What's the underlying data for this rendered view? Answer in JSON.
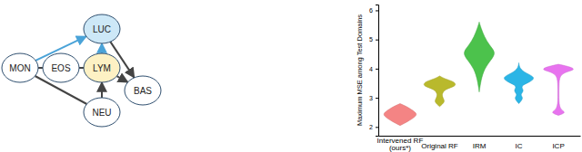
{
  "chart_data": {
    "type": "violin",
    "y_label": "Maximum MSE among Test Domains",
    "categories": [
      "Intervened RF (ours*)",
      "Original RF",
      "IRM",
      "IC",
      "ICP"
    ],
    "colors": [
      "#f48484",
      "#b9b92c",
      "#4cc24c",
      "#2bb5e6",
      "#e873ef"
    ],
    "ylim": [
      1.7,
      6.2
    ],
    "yticks": [
      2,
      3,
      4,
      5,
      6
    ],
    "violins": [
      {
        "y": [
          2.05,
          2.2,
          2.35,
          2.45,
          2.55,
          2.7,
          2.8
        ],
        "density": [
          0,
          0.5,
          0.9,
          1,
          0.8,
          0.4,
          0
        ]
      },
      {
        "y": [
          2.7,
          2.85,
          2.95,
          3.1,
          3.3,
          3.4,
          3.55,
          3.65,
          3.75
        ],
        "density": [
          0,
          0.3,
          0.25,
          0.1,
          0.3,
          1,
          0.9,
          0.3,
          0
        ]
      },
      {
        "y": [
          3.2,
          3.6,
          4.0,
          4.3,
          4.55,
          4.8,
          5.1,
          5.4,
          5.6
        ],
        "density": [
          0,
          0.1,
          0.3,
          0.7,
          1,
          0.6,
          0.3,
          0.1,
          0
        ]
      },
      {
        "y": [
          2.8,
          3.0,
          3.1,
          3.25,
          3.4,
          3.55,
          3.7,
          3.85,
          4.0,
          4.2
        ],
        "density": [
          0,
          0.3,
          0.05,
          0.35,
          0.05,
          0.7,
          1,
          0.4,
          0.05,
          0
        ]
      },
      {
        "y": [
          2.4,
          2.5,
          2.6,
          3.0,
          3.5,
          3.85,
          3.95,
          4.05,
          4.15
        ],
        "density": [
          0,
          0.5,
          0.05,
          0.03,
          0.03,
          0.1,
          1,
          0.8,
          0
        ]
      }
    ]
  },
  "diagram": {
    "nodes": [
      "MON",
      "EOS",
      "LYM",
      "LUC",
      "BAS",
      "NEU"
    ],
    "node_colors": [
      "#ffffff",
      "#ffffff",
      "#fdf1c4",
      "#cde8f7",
      "#ffffff",
      "#ffffff"
    ],
    "edges": [
      {
        "from": 0,
        "to": 1,
        "directed": false,
        "color": "#444444"
      },
      {
        "from": 1,
        "to": 2,
        "directed": false,
        "color": "#444444"
      },
      {
        "from": 0,
        "to": 3,
        "directed": true,
        "color": "#4aa3d8"
      },
      {
        "from": 2,
        "to": 3,
        "directed": true,
        "color": "#4aa3d8"
      },
      {
        "from": 3,
        "to": 4,
        "directed": true,
        "color": "#444444"
      },
      {
        "from": 2,
        "to": 4,
        "directed": true,
        "color": "#444444"
      },
      {
        "from": 0,
        "to": 5,
        "directed": false,
        "color": "#444444"
      },
      {
        "from": 5,
        "to": 2,
        "directed": true,
        "color": "#444444"
      }
    ]
  }
}
